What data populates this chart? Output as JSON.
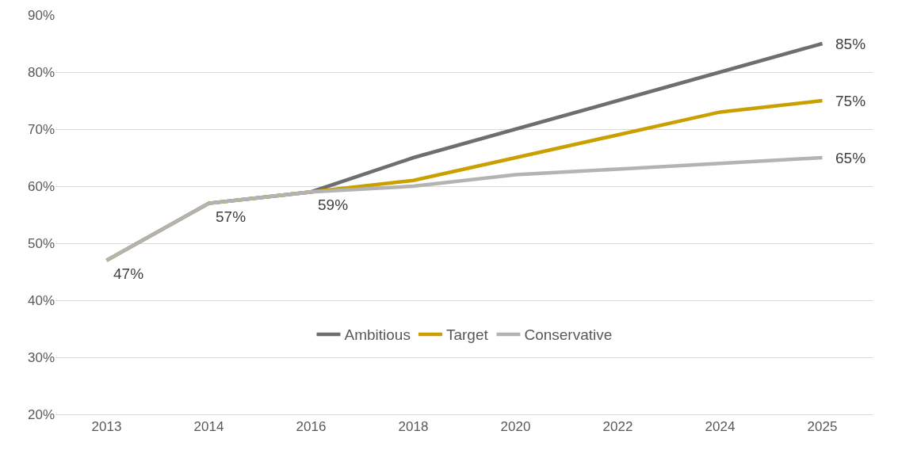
{
  "chart_data": {
    "type": "line",
    "categories": [
      "2013",
      "2014",
      "2016",
      "2018",
      "2020",
      "2022",
      "2024",
      "2025"
    ],
    "series": [
      {
        "name": "Ambitious",
        "color": "#6e6e6e",
        "values": [
          47,
          57,
          59,
          65,
          70,
          75,
          80,
          85
        ]
      },
      {
        "name": "Target",
        "color": "#c9a000",
        "values": [
          47,
          57,
          59,
          61,
          65,
          69,
          73,
          75
        ]
      },
      {
        "name": "Conservative",
        "color": "#b3b3b3",
        "values": [
          47,
          57,
          59,
          60,
          62,
          63,
          64,
          65
        ]
      }
    ],
    "ylim": [
      20,
      90
    ],
    "yticks": [
      {
        "value": 20,
        "label": "20%"
      },
      {
        "value": 30,
        "label": "30%"
      },
      {
        "value": 40,
        "label": "40%"
      },
      {
        "value": 50,
        "label": "50%"
      },
      {
        "value": 60,
        "label": "60%"
      },
      {
        "value": 70,
        "label": "70%"
      },
      {
        "value": 80,
        "label": "80%"
      },
      {
        "value": 90,
        "label": "90%"
      }
    ],
    "annotations": [
      {
        "text": "47%",
        "x": "2013",
        "y": 47
      },
      {
        "text": "57%",
        "x": "2014",
        "y": 57
      },
      {
        "text": "59%",
        "x": "2016",
        "y": 59
      },
      {
        "text": "85%",
        "x": "2025",
        "y": 85
      },
      {
        "text": "75%",
        "x": "2025",
        "y": 75
      },
      {
        "text": "65%",
        "x": "2025",
        "y": 65
      }
    ],
    "grid": "y",
    "legend": "bottom",
    "marker": "none",
    "line_style": "solid"
  }
}
